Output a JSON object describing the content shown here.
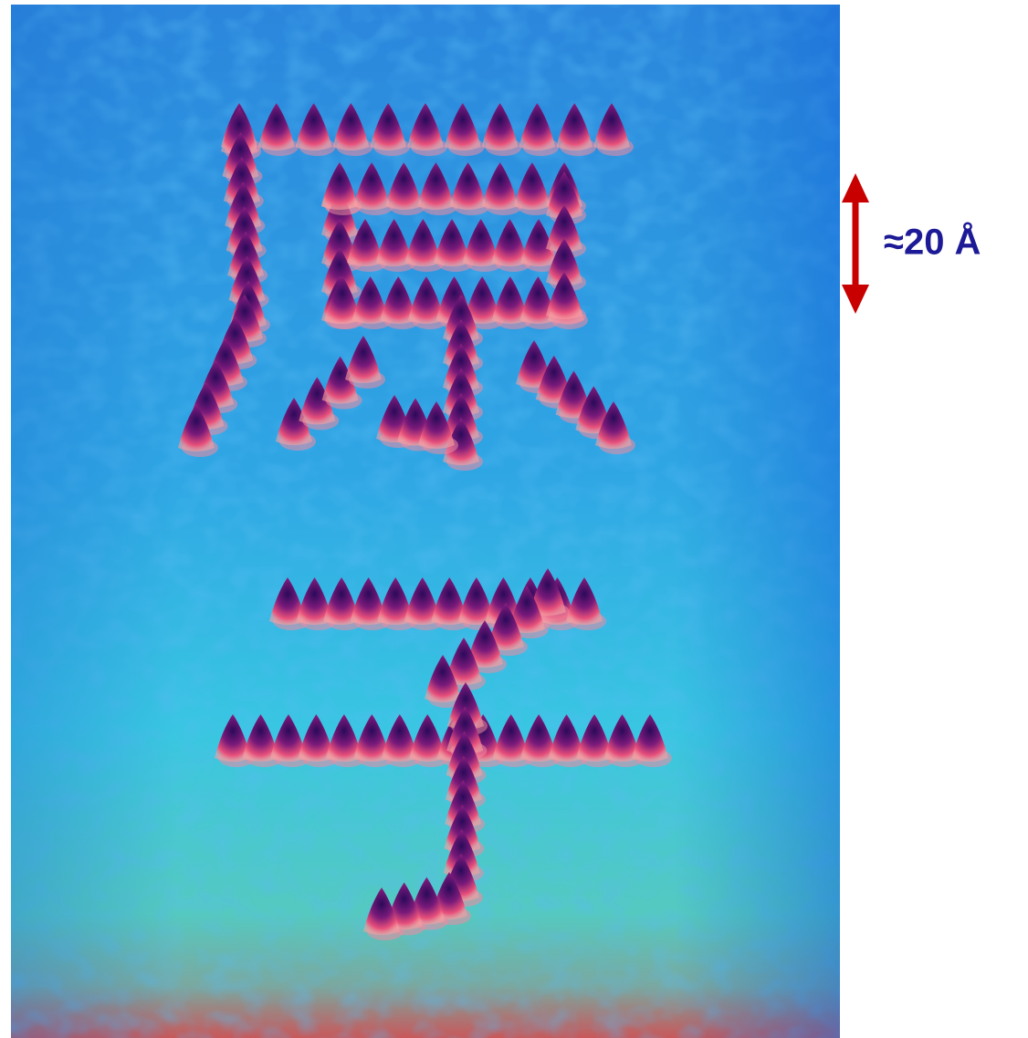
{
  "scale_bar": {
    "label": "≈20 Å"
  }
}
